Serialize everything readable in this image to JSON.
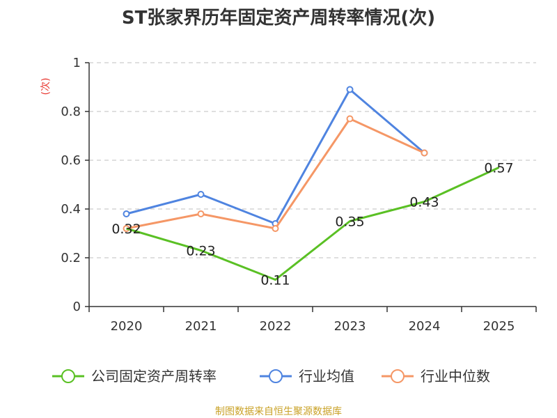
{
  "chart_data": {
    "type": "line",
    "title": "ST张家界历年固定资产周转率情况(次)",
    "y_unit": "(次)",
    "categories": [
      "2020",
      "2021",
      "2022",
      "2023",
      "2024",
      "2025"
    ],
    "ylim": [
      0,
      1
    ],
    "yticks": [
      "0",
      "0.2",
      "0.4",
      "0.6",
      "0.8",
      "1"
    ],
    "ytick_values": [
      0,
      0.2,
      0.4,
      0.6,
      0.8,
      1.0
    ],
    "grid": true,
    "legend_position": "bottom",
    "series": [
      {
        "name": "公司固定资产周转率",
        "color": "#5ac024",
        "values": [
          0.32,
          0.23,
          0.11,
          0.35,
          0.43,
          0.57
        ],
        "labels": [
          "0.32",
          "0.23",
          "0.11",
          "0.35",
          "0.43",
          "0.57"
        ],
        "show_markers": false
      },
      {
        "name": "行业均值",
        "color": "#4f84e0",
        "values": [
          0.38,
          0.46,
          0.34,
          0.89,
          0.63,
          null
        ],
        "show_markers": true
      },
      {
        "name": "行业中位数",
        "color": "#f59766",
        "values": [
          0.32,
          0.38,
          0.32,
          0.77,
          0.63,
          null
        ],
        "show_markers": true
      }
    ]
  },
  "source": "制图数据来自恒生聚源数据库"
}
